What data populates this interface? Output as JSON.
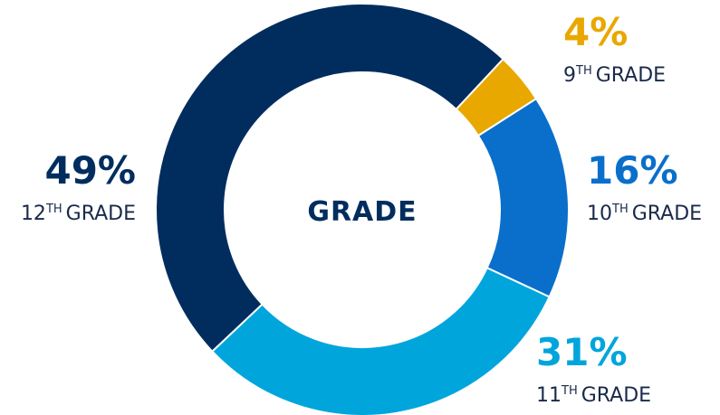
{
  "chart_data": {
    "type": "donut",
    "title": "GRADE",
    "categories": [
      {
        "number": "9",
        "suffix": "TH",
        "word": "GRADE"
      },
      {
        "number": "10",
        "suffix": "TH",
        "word": "GRADE"
      },
      {
        "number": "11",
        "suffix": "TH",
        "word": "GRADE"
      },
      {
        "number": "12",
        "suffix": "TH",
        "word": "GRADE"
      }
    ],
    "values": [
      4,
      16,
      31,
      49
    ],
    "value_labels": [
      "4%",
      "16%",
      "31%",
      "49%"
    ],
    "colors": [
      "#e8a800",
      "#0a6fcb",
      "#00a5dc",
      "#002d5e"
    ]
  }
}
